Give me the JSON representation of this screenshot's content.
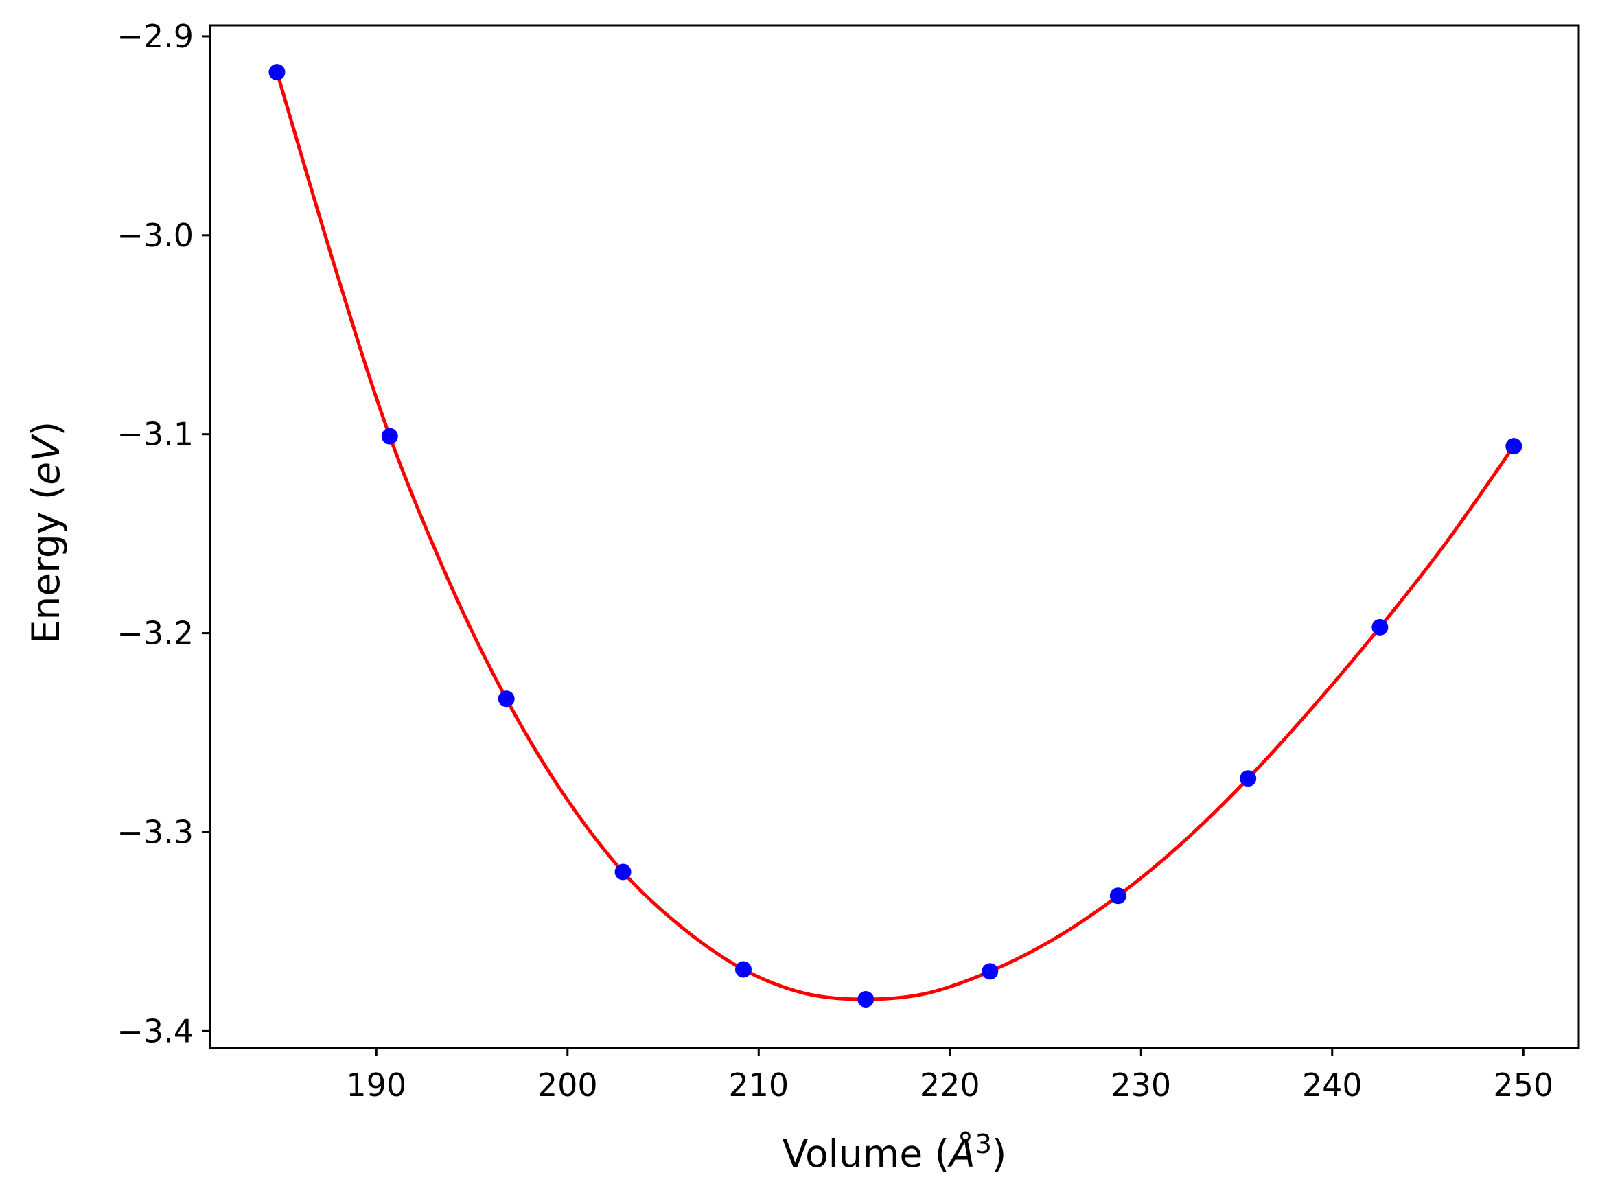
{
  "chart_data": {
    "type": "scatter",
    "title": "",
    "xlabel": "Volume (Å³)",
    "ylabel": "Energy (eV)",
    "xlim": [
      181.3,
      252.9
    ],
    "ylim": [
      -3.4085,
      -2.8945
    ],
    "x_ticks": [
      190,
      200,
      210,
      220,
      230,
      240,
      250
    ],
    "x_tick_labels": [
      "190",
      "200",
      "210",
      "220",
      "230",
      "240",
      "250"
    ],
    "y_ticks": [
      -2.9,
      -3.0,
      -3.1,
      -3.2,
      -3.3,
      -3.4
    ],
    "y_tick_labels": [
      "−2.9",
      "−3.0",
      "−3.1",
      "−3.2",
      "−3.3",
      "−3.4"
    ],
    "grid": false,
    "legend": "none",
    "series": [
      {
        "kind": "points",
        "color": "#0000ff",
        "x": [
          184.8,
          190.7,
          196.8,
          202.9,
          209.2,
          215.6,
          222.1,
          228.8,
          235.6,
          242.5,
          249.5
        ],
        "y": [
          -2.918,
          -3.101,
          -3.233,
          -3.32,
          -3.369,
          -3.384,
          -3.37,
          -3.332,
          -3.273,
          -3.197,
          -3.106
        ]
      },
      {
        "kind": "fit-curve",
        "color": "#ff0000",
        "x": [
          184.8,
          187.8,
          190.7,
          193.8,
          196.8,
          199.8,
          202.9,
          206.0,
          209.2,
          212.4,
          215.6,
          218.8,
          222.1,
          225.4,
          228.8,
          232.2,
          235.6,
          239.0,
          242.5,
          246.0,
          249.5
        ],
        "y": [
          -2.918,
          -3.015,
          -3.101,
          -3.174,
          -3.233,
          -3.281,
          -3.32,
          -3.348,
          -3.369,
          -3.381,
          -3.384,
          -3.381,
          -3.37,
          -3.354,
          -3.332,
          -3.305,
          -3.273,
          -3.237,
          -3.197,
          -3.154,
          -3.106
        ]
      }
    ]
  }
}
